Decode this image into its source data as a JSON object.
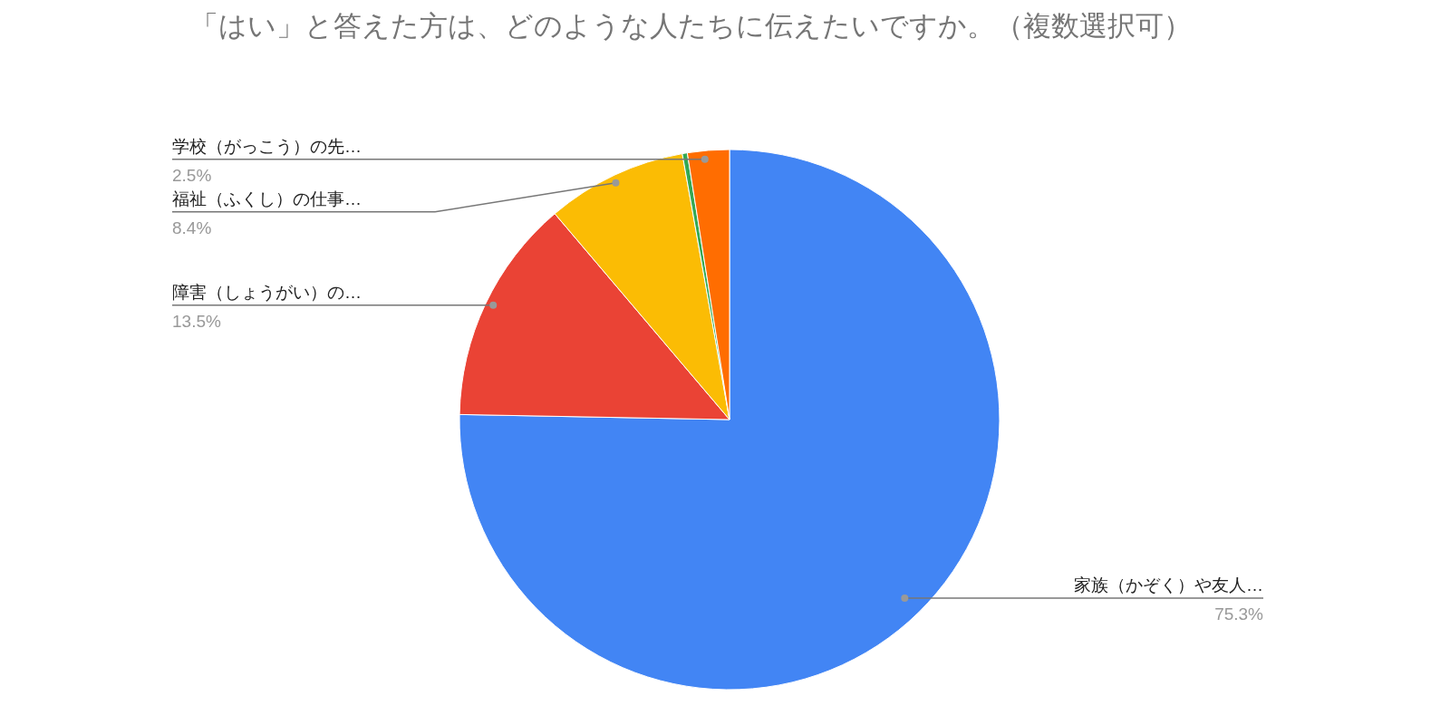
{
  "chart_data": {
    "type": "pie",
    "title": "「はい」と答えた方は、どのような人たちに伝えたいですか。（複数選択可）",
    "categories": [
      "家族（かぞく）や友人…",
      "障害（しょうがい）の…",
      "福祉（ふくし）の仕事…",
      null,
      "学校（がっこう）の先…"
    ],
    "values": [
      75.3,
      13.5,
      8.4,
      0.3,
      2.5
    ],
    "colors": [
      "#4285f4",
      "#ea4335",
      "#fbbc04",
      "#34a853",
      "#ff6d01"
    ],
    "value_labels": [
      "75.3%",
      "13.5%",
      "8.4%",
      null,
      "2.5%"
    ]
  }
}
